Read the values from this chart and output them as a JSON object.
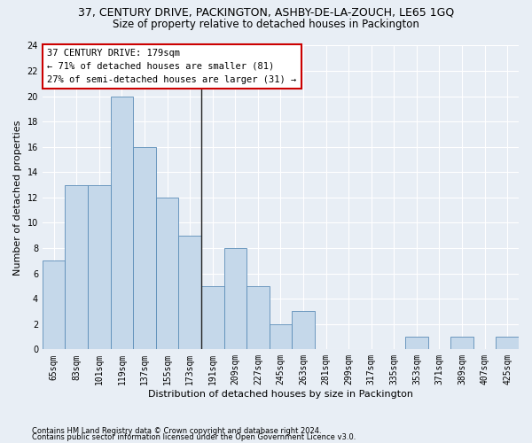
{
  "title": "37, CENTURY DRIVE, PACKINGTON, ASHBY-DE-LA-ZOUCH, LE65 1GQ",
  "subtitle": "Size of property relative to detached houses in Packington",
  "xlabel": "Distribution of detached houses by size in Packington",
  "ylabel": "Number of detached properties",
  "categories": [
    "65sqm",
    "83sqm",
    "101sqm",
    "119sqm",
    "137sqm",
    "155sqm",
    "173sqm",
    "191sqm",
    "209sqm",
    "227sqm",
    "245sqm",
    "263sqm",
    "281sqm",
    "299sqm",
    "317sqm",
    "335sqm",
    "353sqm",
    "371sqm",
    "389sqm",
    "407sqm",
    "425sqm"
  ],
  "values": [
    7,
    13,
    13,
    20,
    16,
    12,
    9,
    5,
    8,
    5,
    2,
    3,
    0,
    0,
    0,
    0,
    1,
    0,
    1,
    0,
    1
  ],
  "bar_color": "#c5d8ea",
  "bar_edgecolor": "#5b8db8",
  "ylim": [
    0,
    24
  ],
  "yticks": [
    0,
    2,
    4,
    6,
    8,
    10,
    12,
    14,
    16,
    18,
    20,
    22,
    24
  ],
  "annotation_box_color": "#ffffff",
  "annotation_box_edgecolor": "#cc0000",
  "annotation_line1": "37 CENTURY DRIVE: 179sqm",
  "annotation_line2": "← 71% of detached houses are smaller (81)",
  "annotation_line3": "27% of semi-detached houses are larger (31) →",
  "property_bin_index": 6,
  "footer1": "Contains HM Land Registry data © Crown copyright and database right 2024.",
  "footer2": "Contains public sector information licensed under the Open Government Licence v3.0.",
  "bg_color": "#e8eef5",
  "grid_color": "#ffffff",
  "title_fontsize": 9,
  "subtitle_fontsize": 8.5,
  "xlabel_fontsize": 8,
  "ylabel_fontsize": 8,
  "tick_fontsize": 7,
  "annotation_fontsize": 7.5,
  "footer_fontsize": 6
}
